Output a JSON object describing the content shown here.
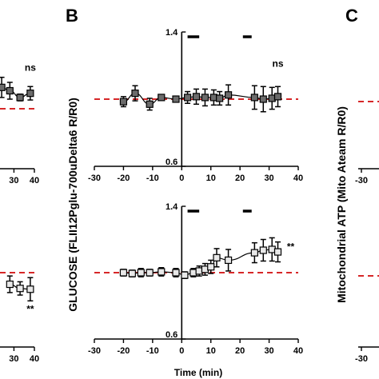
{
  "panels": {
    "left_letter": "",
    "middle_letter": "B",
    "right_letter": "C"
  },
  "labels": {
    "middle_ylabel": "GLUCOSE (FLII12Pglu-700uDelta6 R/R0)",
    "middle_xlabel": "Time (min)",
    "right_ylabel": "Mitochondrial ATP (Mito Ateam R/R0)"
  },
  "colors": {
    "baseline": "#d62728",
    "dark_marker": "#6b6b6b",
    "light_marker": "#e8e8e8",
    "axis": "#000000"
  },
  "chart_data": [
    {
      "id": "B-top",
      "type": "line",
      "title": "",
      "xlabel": "",
      "ylabel": "",
      "xlim": [
        -30,
        40
      ],
      "ylim": [
        0.6,
        1.4
      ],
      "xticks": [
        -30,
        -20,
        -10,
        0,
        10,
        20,
        30,
        40
      ],
      "yticks_labels": [
        "0.6",
        "1.4"
      ],
      "yticks": [
        0.6,
        1.4
      ],
      "baseline": 1.0,
      "stim_bars": [
        [
          2,
          6
        ],
        [
          21,
          24
        ]
      ],
      "annotation": "ns",
      "marker": "dark",
      "points": [
        {
          "x": -20,
          "y": 0.985,
          "err": 0.03
        },
        {
          "x": -16,
          "y": 1.035,
          "err": 0.045
        },
        {
          "x": -11,
          "y": 0.97,
          "err": 0.035
        },
        {
          "x": -7,
          "y": 1.01,
          "err": 0.01
        },
        {
          "x": -2,
          "y": 1.0,
          "err": 0.01
        },
        {
          "x": 2,
          "y": 1.01,
          "err": 0.035
        },
        {
          "x": 5,
          "y": 1.015,
          "err": 0.045
        },
        {
          "x": 8,
          "y": 1.01,
          "err": 0.05
        },
        {
          "x": 11,
          "y": 1.01,
          "err": 0.045
        },
        {
          "x": 13,
          "y": 1.005,
          "err": 0.04
        },
        {
          "x": 16,
          "y": 1.025,
          "err": 0.06
        },
        {
          "x": 25,
          "y": 1.01,
          "err": 0.07
        },
        {
          "x": 28,
          "y": 1.0,
          "err": 0.075
        },
        {
          "x": 31,
          "y": 1.005,
          "err": 0.065
        },
        {
          "x": 33,
          "y": 1.015,
          "err": 0.06
        }
      ]
    },
    {
      "id": "B-bottom",
      "type": "line",
      "title": "",
      "xlabel": "Time (min)",
      "ylabel": "",
      "xlim": [
        -30,
        40
      ],
      "ylim": [
        0.6,
        1.4
      ],
      "xticks": [
        -30,
        -20,
        -10,
        0,
        10,
        20,
        30,
        40
      ],
      "yticks_labels": [
        "0.6",
        "1.4"
      ],
      "yticks": [
        0.6,
        1.4
      ],
      "baseline": 1.0,
      "stim_bars": [
        [
          2,
          6
        ],
        [
          21,
          24
        ]
      ],
      "annotation": "**",
      "marker": "light",
      "points": [
        {
          "x": -20,
          "y": 1.0,
          "err": 0.02
        },
        {
          "x": -17,
          "y": 0.995,
          "err": 0.02
        },
        {
          "x": -14,
          "y": 1.0,
          "err": 0.025
        },
        {
          "x": -11,
          "y": 1.0,
          "err": 0.02
        },
        {
          "x": -7,
          "y": 1.005,
          "err": 0.025
        },
        {
          "x": -2,
          "y": 1.0,
          "err": 0.025
        },
        {
          "x": 1,
          "y": 0.985,
          "err": 0.02
        },
        {
          "x": 4,
          "y": 1.0,
          "err": 0.025
        },
        {
          "x": 6,
          "y": 1.01,
          "err": 0.03
        },
        {
          "x": 8,
          "y": 1.02,
          "err": 0.035
        },
        {
          "x": 10,
          "y": 1.035,
          "err": 0.04
        },
        {
          "x": 12,
          "y": 1.09,
          "err": 0.055
        },
        {
          "x": 16,
          "y": 1.075,
          "err": 0.065
        },
        {
          "x": 25,
          "y": 1.12,
          "err": 0.06
        },
        {
          "x": 28,
          "y": 1.135,
          "err": 0.065
        },
        {
          "x": 31,
          "y": 1.14,
          "err": 0.07
        },
        {
          "x": 33,
          "y": 1.125,
          "err": 0.06
        }
      ]
    },
    {
      "id": "A-top-partial",
      "type": "line",
      "xticks_labels": [
        "30",
        "40"
      ],
      "xticks": [
        30,
        40
      ],
      "annotation": "ns",
      "marker": "dark",
      "points": [
        {
          "x": 24,
          "y": 1.07,
          "err": 0.06
        },
        {
          "x": 28,
          "y": 1.05,
          "err": 0.05
        },
        {
          "x": 33,
          "y": 1.01,
          "err": 0.02
        },
        {
          "x": 38,
          "y": 1.035,
          "err": 0.04
        }
      ]
    },
    {
      "id": "A-bottom-partial",
      "type": "line",
      "xticks_labels": [
        "30",
        "40"
      ],
      "xticks": [
        30,
        40
      ],
      "baseline": 1.0,
      "annotation": "**",
      "marker": "light",
      "points": [
        {
          "x": 28,
          "y": 0.93,
          "err": 0.05
        },
        {
          "x": 33,
          "y": 0.905,
          "err": 0.04
        },
        {
          "x": 38,
          "y": 0.9,
          "err": 0.07
        }
      ]
    },
    {
      "id": "C-partial",
      "type": "line",
      "xticks_labels": [
        "-30"
      ],
      "xticks": [
        -30
      ],
      "baseline": 1.0
    }
  ]
}
